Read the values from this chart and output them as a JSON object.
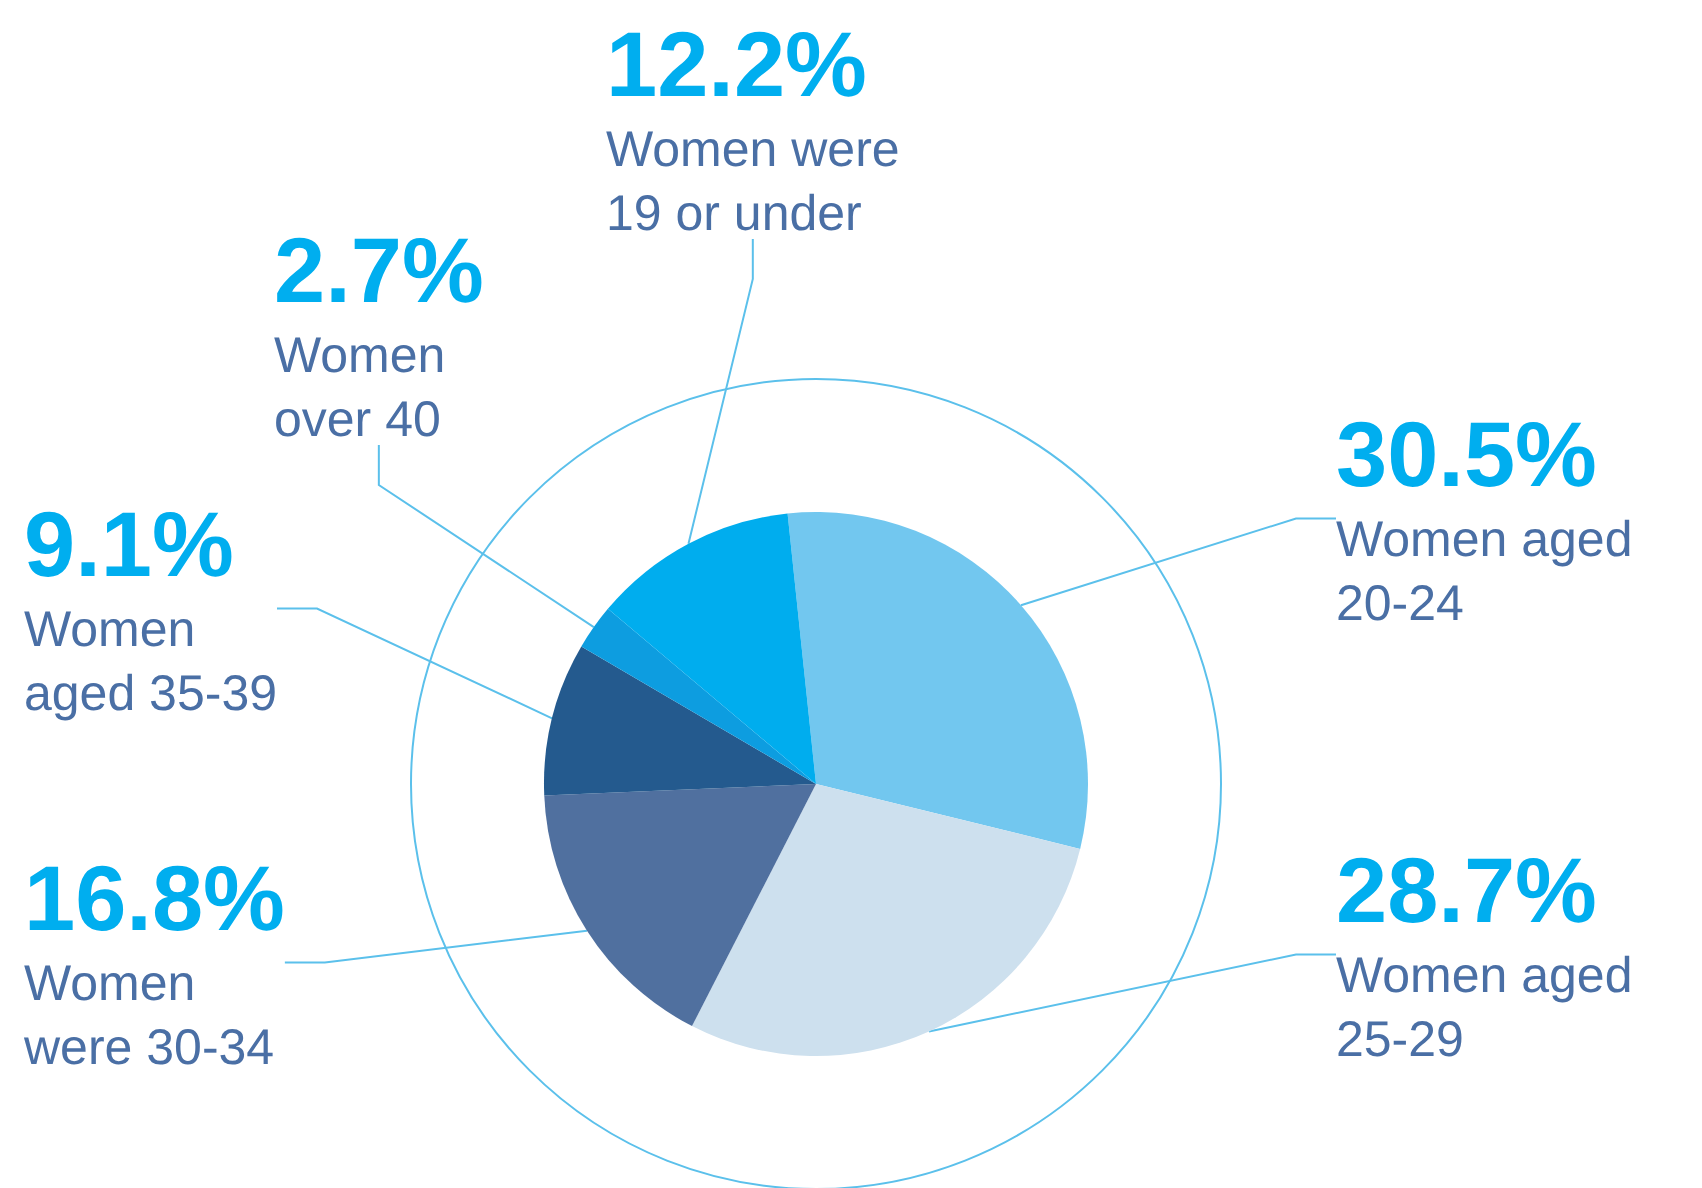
{
  "chart_data": {
    "type": "pie",
    "categories": [
      "Women aged\n20-24",
      "Women aged\n25-29",
      "Women\nwere 30-34",
      "Women\naged 35-39",
      "Women\nover 40",
      "Women were\n19 or under"
    ],
    "values": [
      30.5,
      28.7,
      16.8,
      9.1,
      2.7,
      12.2
    ],
    "colors": [
      "#72c7ef",
      "#cde0ee",
      "#50709f",
      "#245a8e",
      "#0d9de0",
      "#00adee"
    ],
    "value_labels": [
      "30.5%",
      "28.7%",
      "16.8%",
      "9.1%",
      "2.7%",
      "12.2%"
    ],
    "legend": false
  }
}
